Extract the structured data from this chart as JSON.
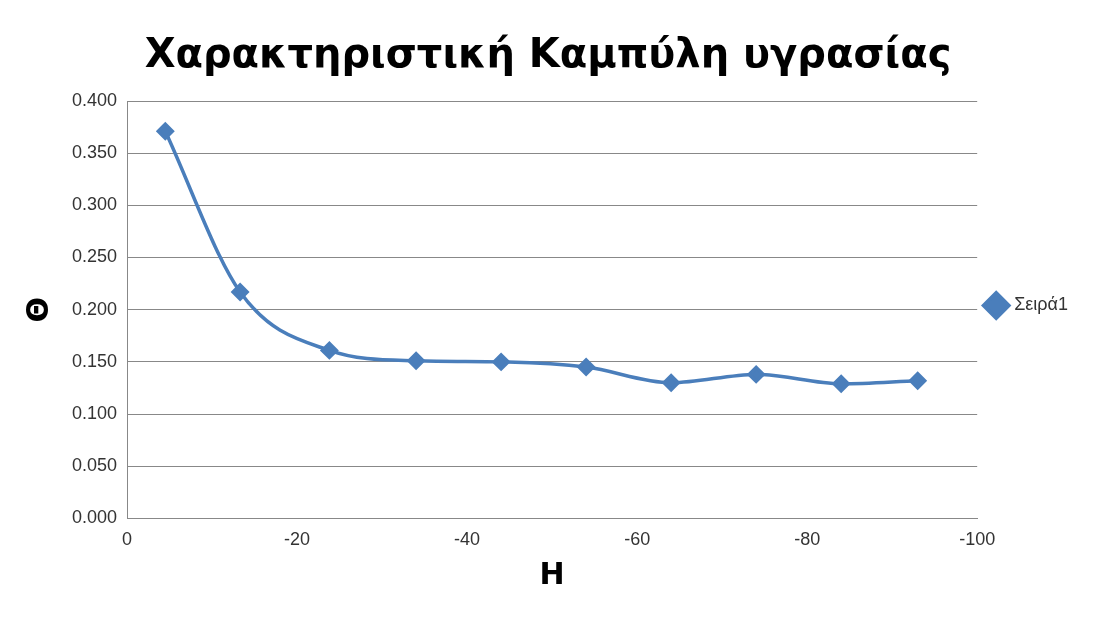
{
  "chart_data": {
    "type": "line",
    "title": "Χαρακτηριστική Καμπύλη υγρασίας",
    "xlabel": "H",
    "ylabel": "Θ",
    "x": [
      -4.5,
      -13.3,
      -23.8,
      -34,
      -44,
      -54,
      -64,
      -74,
      -84,
      -93
    ],
    "series": [
      {
        "name": "Σειρά1",
        "color": "#4a7ebb",
        "values": [
          0.371,
          0.217,
          0.161,
          0.151,
          0.15,
          0.145,
          0.13,
          0.138,
          0.129,
          0.132
        ]
      }
    ],
    "xlim": [
      0,
      -100
    ],
    "xticks": [
      0,
      -20,
      -40,
      -60,
      -80,
      -100
    ],
    "ylim": [
      0,
      0.4
    ],
    "yticks": [
      {
        "value": 0,
        "label": "0.000"
      },
      {
        "value": 0.05,
        "label": "0.050"
      },
      {
        "value": 0.1,
        "label": "0.100"
      },
      {
        "value": 0.15,
        "label": "0.150"
      },
      {
        "value": 0.2,
        "label": "0.200"
      },
      {
        "value": 0.25,
        "label": "0.250"
      },
      {
        "value": 0.3,
        "label": "0.300"
      },
      {
        "value": 0.35,
        "label": "0.350"
      },
      {
        "value": 0.4,
        "label": "0.400"
      }
    ],
    "grid": "y",
    "legend": "right",
    "marker": "diamond",
    "line_style": "solid"
  }
}
